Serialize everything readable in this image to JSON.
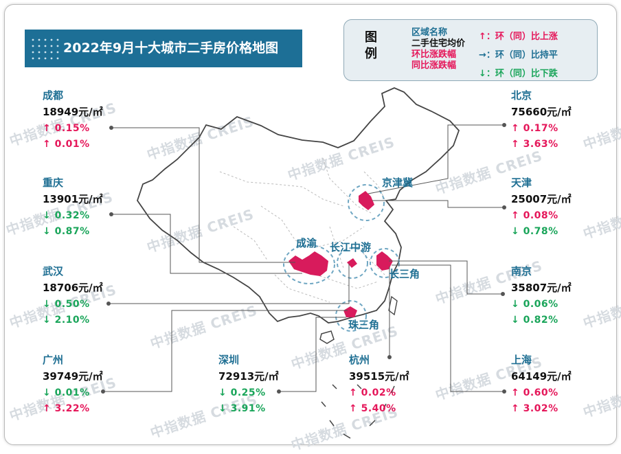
{
  "title": "2022年9月十大城市二手房价格地图",
  "legend": {
    "heading": "图例",
    "keys": [
      {
        "text": "区域名称",
        "color": "#1f6f93"
      },
      {
        "text": "二手住宅均价",
        "color": "#111111"
      },
      {
        "text": "环比涨跌幅",
        "color": "#e5175a"
      },
      {
        "text": "同比涨跌幅",
        "color": "#e5175a"
      }
    ],
    "arrows": [
      {
        "symbol": "↑：",
        "text": "环（同）比上涨",
        "color": "#e5175a"
      },
      {
        "symbol": "→：",
        "text": "环（同）比持平",
        "color": "#1f6f93"
      },
      {
        "symbol": "↓：",
        "text": "环（同）比下跌",
        "color": "#1aa55a"
      }
    ]
  },
  "cities": [
    {
      "id": "chengdu",
      "name": "成都",
      "price": "18949元/㎡",
      "mom": "↑ 0.15%",
      "mom_dir": "up",
      "yoy": "↑ 0.01%",
      "yoy_dir": "up"
    },
    {
      "id": "chongqing",
      "name": "重庆",
      "price": "13901元/㎡",
      "mom": "↓ 0.32%",
      "mom_dir": "down",
      "yoy": "↓ 0.87%",
      "yoy_dir": "down"
    },
    {
      "id": "wuhan",
      "name": "武汉",
      "price": "18706元/㎡",
      "mom": "↓ 0.50%",
      "mom_dir": "down",
      "yoy": "↓ 2.10%",
      "yoy_dir": "down"
    },
    {
      "id": "guangzhou",
      "name": "广州",
      "price": "39749元/㎡",
      "mom": "↓ 0.01%",
      "mom_dir": "down",
      "yoy": "↑ 3.22%",
      "yoy_dir": "up"
    },
    {
      "id": "shenzhen",
      "name": "深圳",
      "price": "72913元/㎡",
      "mom": "↓ 0.25%",
      "mom_dir": "down",
      "yoy": "↓ 3.91%",
      "yoy_dir": "down"
    },
    {
      "id": "hangzhou",
      "name": "杭州",
      "price": "39515元/㎡",
      "mom": "↑ 0.02%",
      "mom_dir": "up",
      "yoy": "↑ 5.40%",
      "yoy_dir": "up"
    },
    {
      "id": "beijing",
      "name": "北京",
      "price": "75660元/㎡",
      "mom": "↑ 0.17%",
      "mom_dir": "up",
      "yoy": "↑ 3.63%",
      "yoy_dir": "up"
    },
    {
      "id": "tianjin",
      "name": "天津",
      "price": "25007元/㎡",
      "mom": "↑ 0.08%",
      "mom_dir": "up",
      "yoy": "↓ 0.78%",
      "yoy_dir": "down"
    },
    {
      "id": "nanjing",
      "name": "南京",
      "price": "35807元/㎡",
      "mom": "↓ 0.06%",
      "mom_dir": "down",
      "yoy": "↓ 0.82%",
      "yoy_dir": "down"
    },
    {
      "id": "shanghai",
      "name": "上海",
      "price": "64149元/㎡",
      "mom": "↑ 0.60%",
      "mom_dir": "up",
      "yoy": "↑ 3.02%",
      "yoy_dir": "up"
    }
  ],
  "regions": {
    "jingjinji": "京津冀",
    "chengyu": "成渝",
    "changjiang_mid": "长江中游",
    "changsanjiao": "长三角",
    "zhusanjiao": "珠三角"
  },
  "watermark": "中指数据 CREIS",
  "colors": {
    "banner": "#1d6f96",
    "city_name": "#1f6f93",
    "up": "#e5175a",
    "down": "#1aa55a",
    "highlight": "#d81b5c"
  }
}
